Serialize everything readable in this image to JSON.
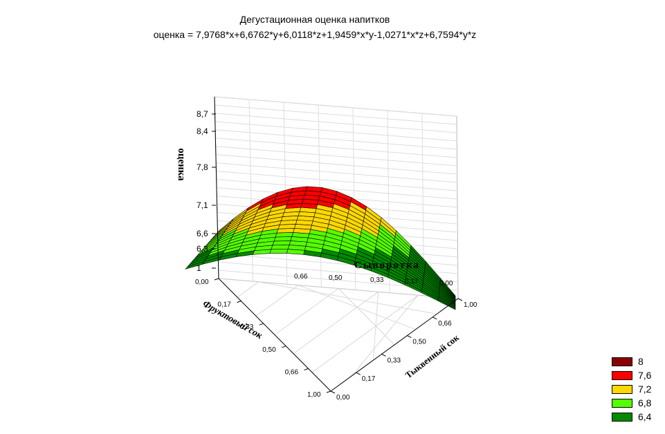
{
  "chart_data": {
    "type": "surface3d",
    "title": "Дегустационная оценка напитков",
    "subtitle": "оценка = 7,9768*x+6,6762*y+6,0118*z+1,9459*x*y-1,0271*x*z+6,7594*y*z",
    "zlabel": "оценка",
    "xlabel": "Сыворотка",
    "ylabel": "Фруктовый сок",
    "wlabel": "Тыквенный сок",
    "z_ticks": [
      "8,7",
      "8,4",
      "7,8",
      "7,1",
      "6,6",
      "6,3",
      "1"
    ],
    "back_ticks": [
      "0,66",
      "0,50",
      "0,33",
      "0,17",
      "0,00"
    ],
    "left_ticks": [
      "0,00",
      "0,17",
      "0,33",
      "0,50",
      "0,66",
      "1,00"
    ],
    "right_ticks": [
      "1,00",
      "0,66",
      "0,50",
      "0,33",
      "0,17",
      "0,00"
    ],
    "coefficients": {
      "x": 7.9768,
      "y": 6.6762,
      "z": 6.0118,
      "xy": 1.9459,
      "xz": -1.0271,
      "yz": 6.7594
    },
    "zlim": [
      6.0,
      8.7
    ],
    "legend": [
      {
        "label": "8",
        "color": "#8B0000"
      },
      {
        "label": "7,6",
        "color": "#FF0000"
      },
      {
        "label": "7,2",
        "color": "#FFD800"
      },
      {
        "label": "6,8",
        "color": "#55FF00"
      },
      {
        "label": "6,4",
        "color": "#008A00"
      }
    ],
    "legend_position": "bottom-right",
    "grid": true
  }
}
